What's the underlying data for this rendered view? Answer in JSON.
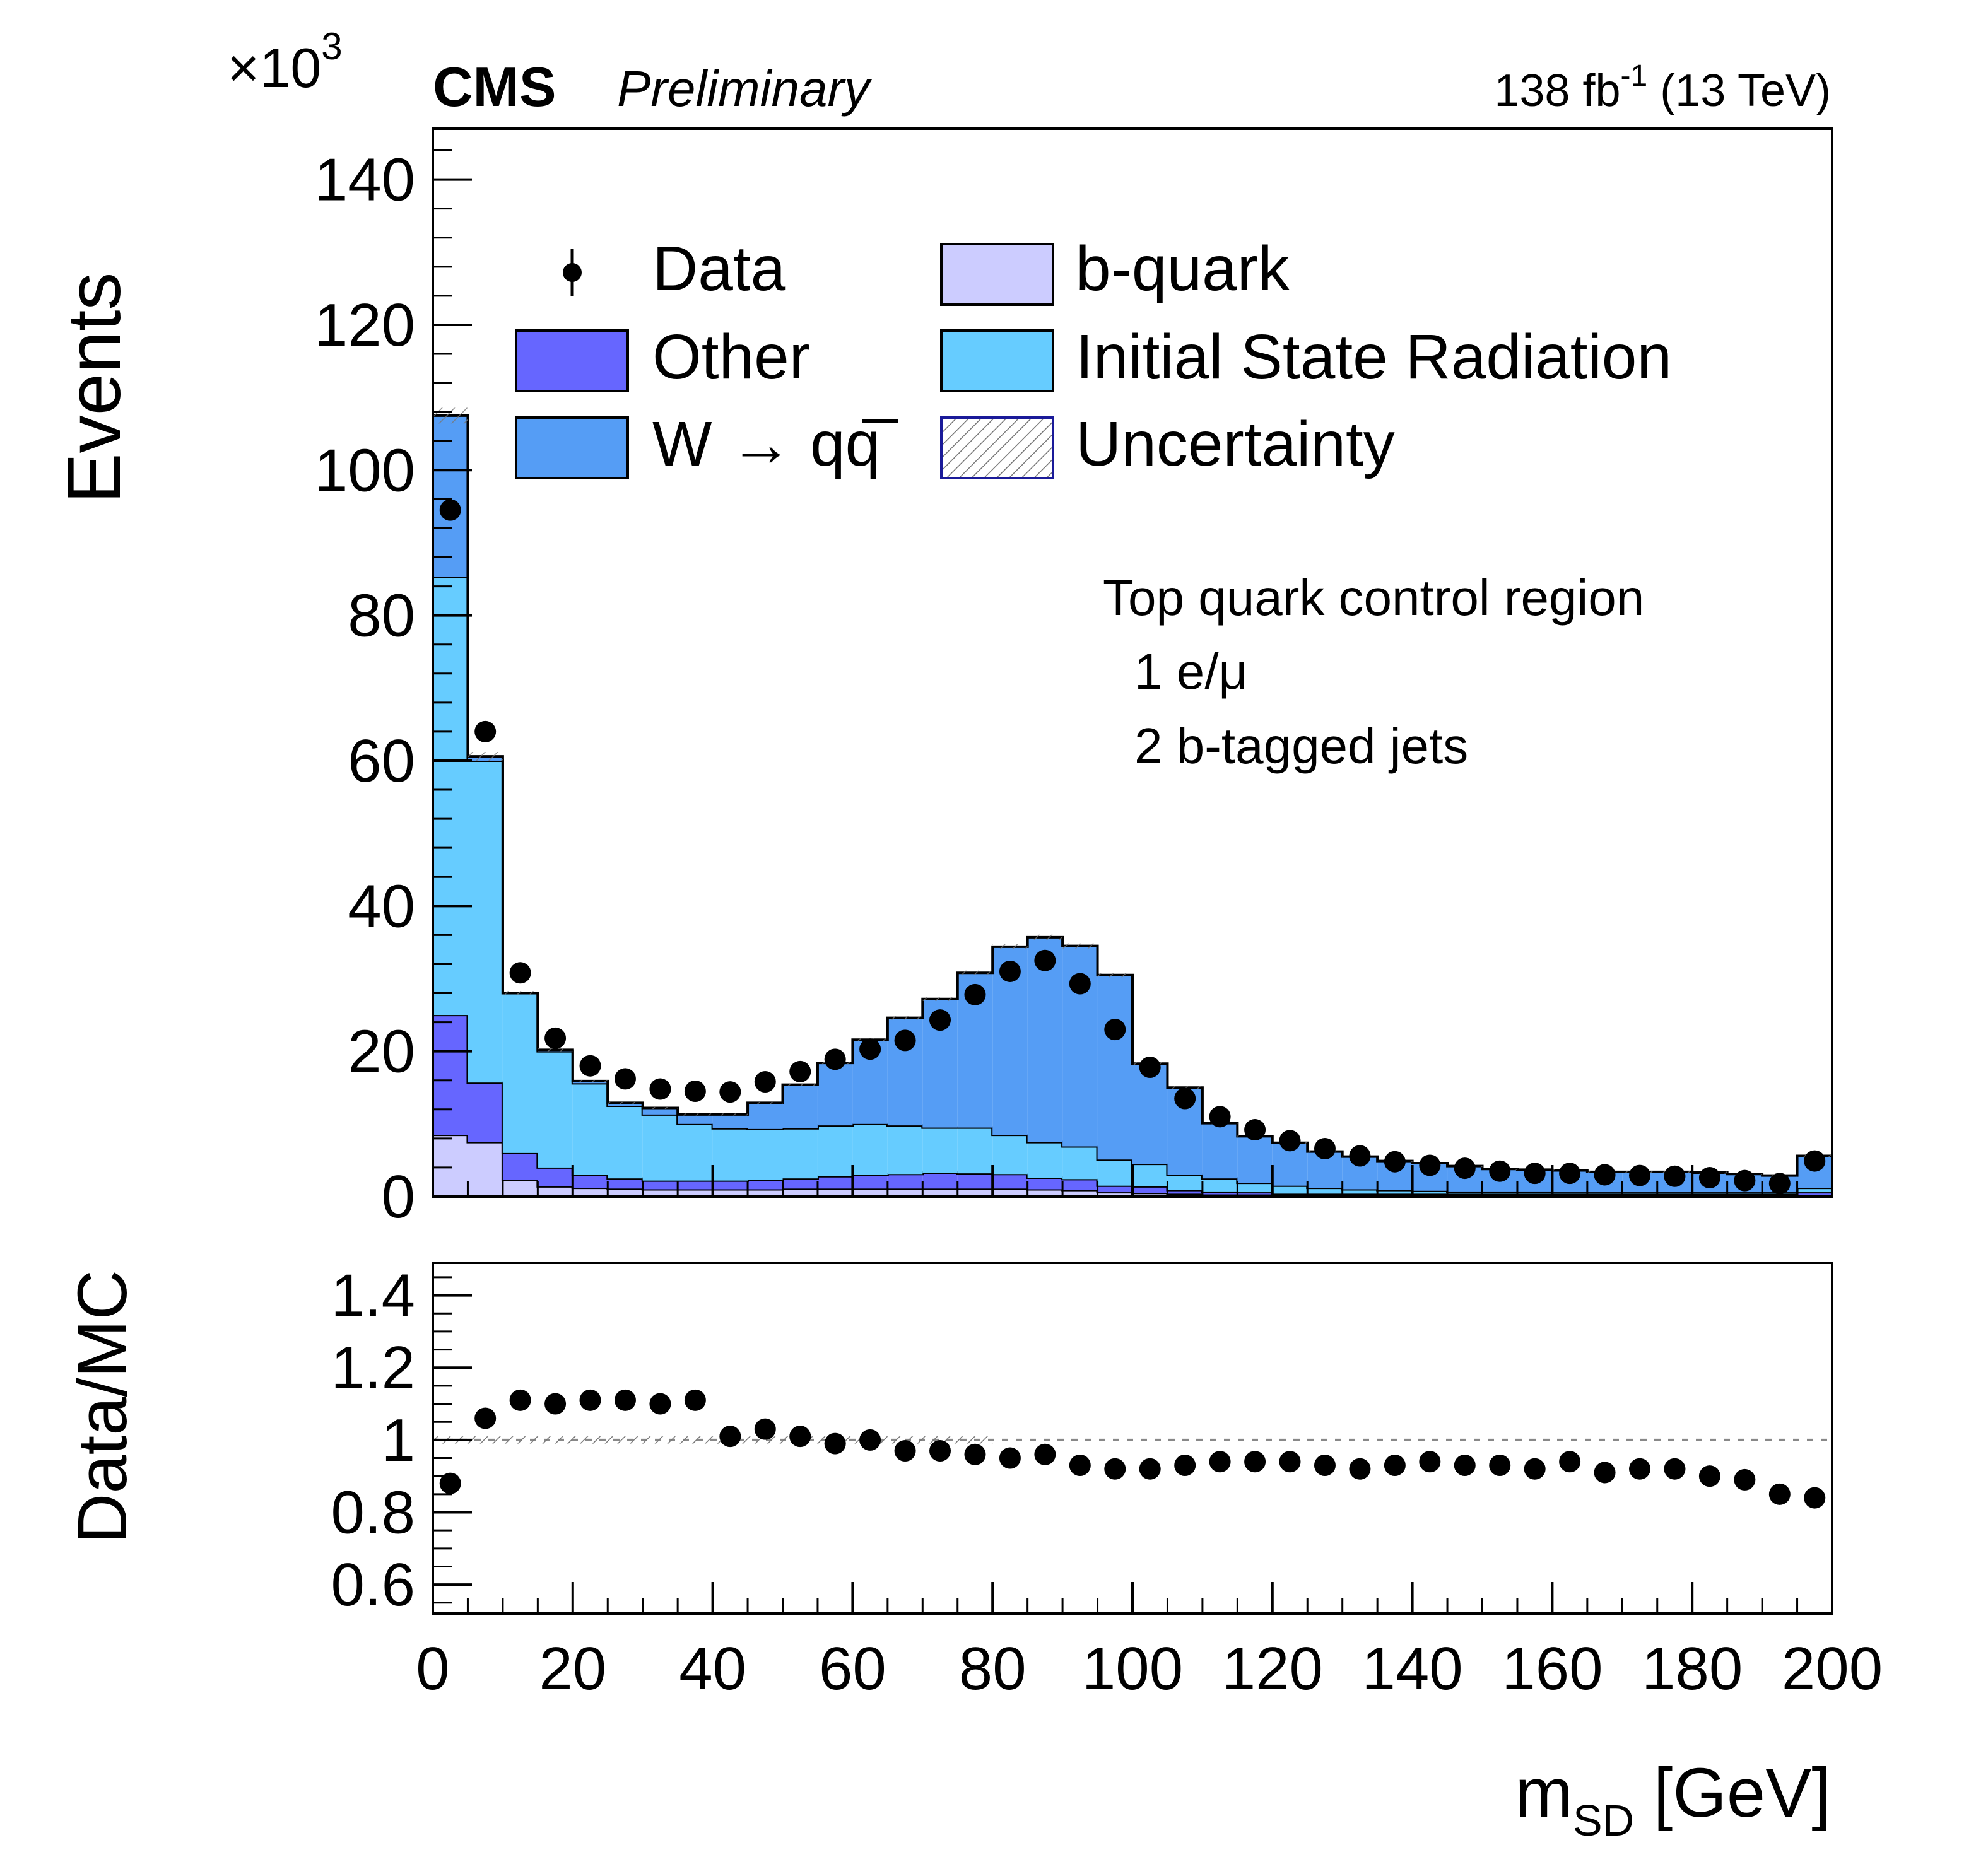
{
  "chart_data": {
    "type": "bar",
    "header": {
      "experiment": "CMS",
      "status": "Preliminary",
      "lumi_value": "138 fb",
      "lumi_exp": "-1",
      "energy": " (13 TeV)"
    },
    "main_panel": {
      "ylabel": "Events",
      "y_multiplier_base": "×10",
      "y_multiplier_exp": "3",
      "ylim": [
        0,
        147
      ],
      "yticks": [
        "0",
        "20",
        "40",
        "60",
        "80",
        "100",
        "120",
        "140"
      ],
      "ytick_values": [
        0,
        20,
        40,
        60,
        80,
        100,
        120,
        140
      ]
    },
    "ratio_panel": {
      "ylabel": "Data/MC",
      "ylim": [
        0.52,
        1.49
      ],
      "yticks": [
        "0.6",
        "0.8",
        "1",
        "1.2",
        "1.4"
      ],
      "ytick_values": [
        0.6,
        0.8,
        1.0,
        1.2,
        1.4
      ]
    },
    "xaxis": {
      "label": "m",
      "label_sub": "SD",
      "label_unit": " [GeV]",
      "xlim": [
        0,
        200
      ],
      "ticks": [
        "0",
        "20",
        "40",
        "60",
        "80",
        "100",
        "120",
        "140",
        "160",
        "180",
        "200"
      ],
      "tick_values": [
        0,
        20,
        40,
        60,
        80,
        100,
        120,
        140,
        160,
        180,
        200
      ]
    },
    "annotation": {
      "line1": "Top quark control region",
      "line2": "1 e/μ",
      "line3": "2 b-tagged jets"
    },
    "legend": [
      {
        "key": "data",
        "label": "Data"
      },
      {
        "key": "bquark",
        "label": "b-quark"
      },
      {
        "key": "other",
        "label": "Other"
      },
      {
        "key": "isr",
        "label": "Initial State Radiation"
      },
      {
        "key": "wqq",
        "label": "W → qq̄",
        "label_pre": "W",
        "label_arrow": "→",
        "label_post": "qq"
      },
      {
        "key": "unc",
        "label": "Uncertainty"
      }
    ],
    "colors": {
      "bquark": "#ccccff",
      "other": "#6666ff",
      "isr": "#66ccff",
      "wqq": "#559df5",
      "data": "#000000",
      "uncertainty": "#888888"
    },
    "bin_width": 5,
    "bin_low_edges": [
      0,
      5,
      10,
      15,
      20,
      25,
      30,
      35,
      40,
      45,
      50,
      55,
      60,
      65,
      70,
      75,
      80,
      85,
      90,
      95,
      100,
      105,
      110,
      115,
      120,
      125,
      130,
      135,
      140,
      145,
      150,
      155,
      160,
      165,
      170,
      175,
      180,
      185,
      190,
      195
    ],
    "series": [
      {
        "name": "b-quark",
        "values": [
          8.5,
          7.5,
          2.3,
          1.4,
          1.2,
          1.1,
          1.0,
          1.0,
          1.0,
          1.0,
          1.1,
          1.1,
          1.1,
          1.1,
          1.1,
          1.1,
          1.1,
          1.0,
          0.9,
          0.6,
          0.5,
          0.4,
          0.3,
          0.3,
          0.2,
          0.2,
          0.2,
          0.2,
          0.2,
          0.2,
          0.2,
          0.2,
          0.2,
          0.2,
          0.2,
          0.2,
          0.2,
          0.2,
          0.2,
          0.2
        ]
      },
      {
        "name": "Other",
        "values": [
          16.5,
          8.2,
          3.7,
          2.6,
          1.8,
          1.4,
          1.2,
          1.2,
          1.2,
          1.3,
          1.4,
          1.7,
          1.9,
          2.0,
          2.2,
          2.1,
          2.0,
          1.6,
          1.5,
          0.9,
          0.9,
          0.5,
          0.4,
          0.3,
          0.2,
          0.2,
          0.2,
          0.2,
          0.2,
          0.2,
          0.2,
          0.2,
          0.2,
          0.2,
          0.2,
          0.2,
          0.2,
          0.2,
          0.2,
          0.4
        ]
      },
      {
        "name": "Initial State Radiation",
        "values": [
          60.3,
          44.3,
          22.0,
          16.0,
          12.6,
          10.0,
          9.1,
          7.8,
          7.2,
          7.0,
          6.9,
          7.0,
          7.0,
          6.7,
          6.2,
          6.3,
          5.4,
          4.9,
          4.5,
          3.6,
          3.1,
          2.1,
          1.8,
          1.3,
          1.1,
          0.8,
          0.6,
          0.5,
          0.4,
          0.3,
          0.3,
          0.3,
          0.2,
          0.2,
          0.2,
          0.2,
          0.2,
          0.2,
          0.2,
          0.6
        ]
      },
      {
        "name": "W → qq̄",
        "values": [
          22.2,
          0.6,
          0.0,
          0.2,
          0.3,
          0.4,
          0.9,
          1.3,
          1.9,
          3.6,
          6.0,
          8.6,
          11.6,
          14.8,
          17.7,
          21.3,
          25.9,
          28.2,
          27.6,
          25.4,
          13.8,
          12.0,
          7.6,
          6.4,
          5.9,
          5.0,
          4.5,
          4.0,
          3.8,
          3.5,
          3.1,
          3.0,
          3.0,
          2.8,
          2.8,
          2.8,
          2.7,
          2.5,
          2.3,
          4.4
        ]
      }
    ],
    "data_points": [
      94.5,
      64.0,
      30.8,
      21.8,
      18.0,
      16.2,
      14.8,
      14.5,
      14.4,
      15.8,
      17.2,
      18.9,
      20.3,
      21.5,
      24.3,
      27.8,
      31.0,
      32.5,
      29.3,
      23.0,
      17.8,
      13.5,
      11.0,
      9.2,
      7.7,
      6.6,
      5.6,
      4.8,
      4.3,
      3.9,
      3.5,
      3.2,
      3.2,
      3.0,
      2.9,
      2.8,
      2.6,
      2.2,
      1.8,
      4.9
    ],
    "ratio_values": [
      0.88,
      1.06,
      1.11,
      1.1,
      1.11,
      1.11,
      1.1,
      1.11,
      1.01,
      1.03,
      1.01,
      0.99,
      1.0,
      0.97,
      0.97,
      0.96,
      0.95,
      0.96,
      0.93,
      0.92,
      0.92,
      0.93,
      0.94,
      0.94,
      0.94,
      0.93,
      0.92,
      0.93,
      0.94,
      0.93,
      0.93,
      0.92,
      0.94,
      0.91,
      0.92,
      0.92,
      0.9,
      0.89,
      0.85,
      0.84
    ]
  }
}
